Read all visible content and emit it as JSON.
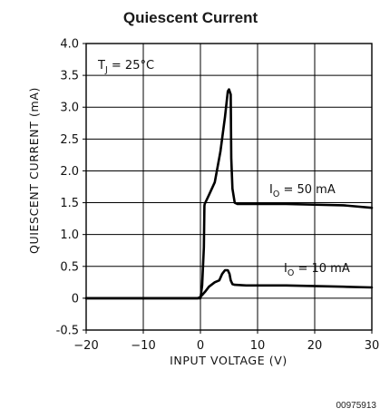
{
  "chart_data": {
    "type": "line",
    "title": "Quiescent Current",
    "xlabel": "INPUT VOLTAGE (V)",
    "ylabel": "QUIESCENT CURRENT (mA)",
    "xlim": [
      -20,
      30
    ],
    "ylim": [
      -0.5,
      4.0
    ],
    "x_ticks": [
      "−20",
      "−10",
      "0",
      "10",
      "20",
      "30"
    ],
    "x_tick_values": [
      -20,
      -10,
      0,
      10,
      20,
      30
    ],
    "y_ticks": [
      "4.0",
      "3.5",
      "3.0",
      "2.5",
      "2.0",
      "1.5",
      "1.0",
      "0.5",
      "0",
      "-0.5"
    ],
    "y_tick_values": [
      4.0,
      3.5,
      3.0,
      2.5,
      2.0,
      1.5,
      1.0,
      0.5,
      0,
      -0.5
    ],
    "grid": true,
    "annotations": {
      "tj": {
        "main": "T",
        "sub": "J",
        "rest": " = 25°C"
      },
      "io_50": {
        "main": "I",
        "sub": "O",
        "rest": " = 50 mA"
      },
      "io_10": {
        "main": "I",
        "sub": "O",
        "rest": " = 10 mA"
      }
    },
    "series": [
      {
        "x": [
          -20,
          -5,
          0,
          0.3,
          0.6,
          0.7,
          0.75,
          1.5,
          2.5,
          3.5,
          4.3,
          4.8,
          5.0,
          5.3,
          5.4,
          5.6,
          6.0,
          6.5,
          8,
          15,
          25,
          30
        ],
        "y": [
          0,
          0,
          0,
          0.2,
          0.8,
          1.45,
          1.48,
          1.62,
          1.82,
          2.3,
          2.85,
          3.25,
          3.28,
          3.2,
          2.2,
          1.72,
          1.5,
          1.48,
          1.48,
          1.48,
          1.46,
          1.42
        ]
      },
      {
        "x": [
          -20,
          -5,
          -0.5,
          0,
          0.8,
          1.5,
          2.5,
          3.3,
          3.8,
          4.3,
          4.8,
          5.1,
          5.3,
          5.6,
          6.0,
          8,
          15,
          25,
          30
        ],
        "y": [
          0,
          0,
          0,
          0.02,
          0.1,
          0.18,
          0.25,
          0.28,
          0.38,
          0.44,
          0.44,
          0.38,
          0.28,
          0.22,
          0.21,
          0.2,
          0.2,
          0.18,
          0.17
        ]
      }
    ]
  },
  "figure_id": "00975913"
}
